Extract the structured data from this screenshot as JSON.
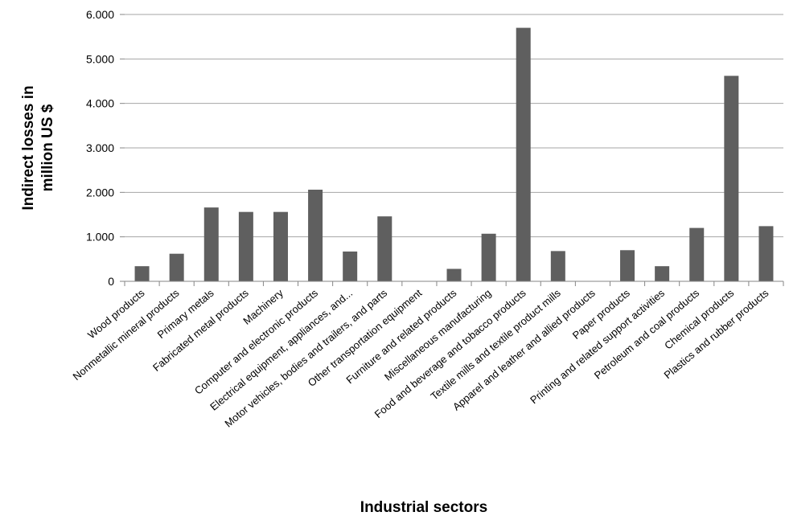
{
  "chart_data": {
    "type": "bar",
    "xlabel": "Industrial sectors",
    "ylabel_lines": [
      "Indirect losses in",
      "million US $"
    ],
    "ylim": [
      0,
      6000
    ],
    "yticks": [
      0,
      1000,
      2000,
      3000,
      4000,
      5000,
      6000
    ],
    "ytick_labels": [
      "0",
      "1.000",
      "2.000",
      "3.000",
      "4.000",
      "5.000",
      "6.000"
    ],
    "grid": "horizontal",
    "bar_color": "#5f5f5f",
    "categories": [
      "Wood products",
      "Nonmetallic mineral products",
      "Primary metals",
      "Fabricated metal products",
      "Machinery",
      "Computer and electronic products",
      "Electrical equipment, appliances, and...",
      "Motor vehicles, bodies and trailers, and parts",
      "Other transportation equipment",
      "Furniture and related products",
      "Miscellaneous manufacturing",
      "Food and beverage and tobacco products",
      "Textile mills and textile product mills",
      "Apparel and leather and allied products",
      "Paper products",
      "Printing and related support activities",
      "Petroleum and coal products",
      "Chemical products",
      "Plastics and rubber products"
    ],
    "values": [
      340,
      620,
      1660,
      1560,
      1560,
      2060,
      670,
      1460,
      0,
      280,
      1070,
      5700,
      680,
      0,
      700,
      340,
      1200,
      4620,
      1240
    ]
  }
}
